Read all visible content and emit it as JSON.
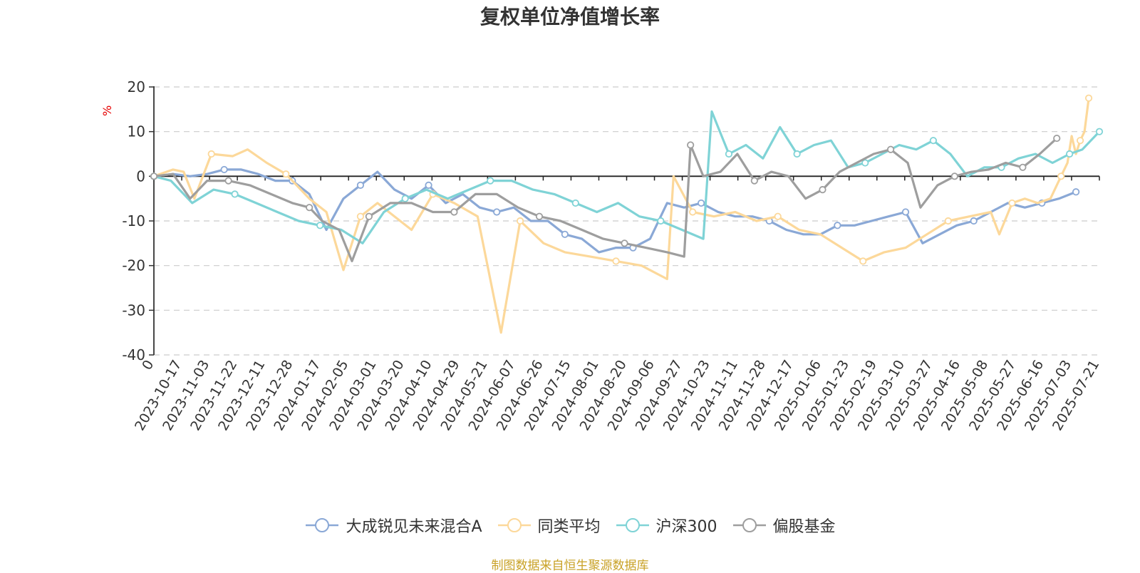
{
  "title": "复权单位净值增长率",
  "source_note": "制图数据来自恒生聚源数据库",
  "chart_data": {
    "type": "line",
    "title": "复权单位净值增长率",
    "ylabel": "%",
    "xlabel": "",
    "ylim": [
      -40,
      20
    ],
    "yticks": [
      20,
      10,
      0,
      -10,
      -20,
      -30,
      -40
    ],
    "grid": true,
    "legend_position": "bottom",
    "x_tick_labels": [
      "0",
      "2023-10-17",
      "2023-11-03",
      "2023-11-22",
      "2023-12-11",
      "2023-12-28",
      "2024-01-17",
      "2024-02-05",
      "2024-03-01",
      "2024-03-20",
      "2024-04-10",
      "2024-04-29",
      "2024-05-21",
      "2024-06-07",
      "2024-06-26",
      "2024-07-15",
      "2024-08-01",
      "2024-08-20",
      "2024-09-06",
      "2024-09-27",
      "2024-10-23",
      "2024-11-11",
      "2024-11-28",
      "2024-12-17",
      "2025-01-06",
      "2025-01-23",
      "2025-02-19",
      "2025-03-10",
      "2025-03-27",
      "2025-04-16",
      "2025-05-08",
      "2025-05-27",
      "2025-06-16",
      "2025-07-03",
      "2025-07-21"
    ],
    "series": [
      {
        "name": "大成锐见未来混合A",
        "color": "#8aa8d6",
        "values": [
          0,
          0.5,
          0,
          0.5,
          1.5,
          1.5,
          0.5,
          -1,
          -1,
          -4,
          -12,
          -5,
          -2,
          1,
          -3,
          -5,
          -2,
          -6,
          -4,
          -7,
          -8,
          -7,
          -10,
          -10,
          -13,
          -14,
          -17,
          -16,
          -16,
          -14,
          -6,
          -7,
          -6,
          -8,
          -9,
          -9,
          -10,
          -12,
          -13,
          -13,
          -11,
          -11,
          -10,
          -9,
          -8,
          -15,
          -13,
          -11,
          -10,
          -8,
          -6,
          -7,
          -6,
          -5,
          -3.5
        ],
        "points_t": [
          0,
          9,
          17,
          25,
          33,
          41,
          49,
          57,
          65,
          73,
          81,
          89,
          97,
          105,
          113,
          121,
          129,
          137,
          145,
          153,
          161,
          169,
          177,
          185,
          193,
          201,
          209,
          217,
          225,
          233,
          241,
          249,
          257,
          265,
          273,
          281,
          289,
          297,
          305,
          313,
          321,
          329,
          337,
          345,
          353,
          361,
          369,
          377,
          385,
          393,
          401,
          409,
          417,
          425,
          433
        ]
      },
      {
        "name": "同类平均",
        "color": "#fcd89a",
        "values": [
          0,
          1.5,
          1,
          -5,
          5,
          4.5,
          6,
          3,
          0.5,
          -5,
          -8,
          -21,
          -9,
          -6,
          -9,
          -12,
          -4,
          -6,
          -9,
          -35,
          -10,
          -15,
          -17,
          -18,
          -19,
          -20,
          -23,
          0,
          -8,
          -9,
          -8,
          -10,
          -9,
          -12,
          -13,
          -16,
          -19,
          -17,
          -16,
          -13,
          -10,
          -9,
          -8,
          -13,
          -6,
          -5,
          -6,
          -5,
          0,
          3,
          9,
          5,
          8,
          10,
          17.5
        ],
        "points_t": [
          0,
          9,
          14,
          19,
          27,
          37,
          44,
          53,
          62,
          73,
          81,
          89,
          97,
          105,
          113,
          121,
          131,
          141,
          152,
          163,
          172,
          183,
          193,
          205,
          217,
          229,
          241,
          244,
          253,
          263,
          273,
          283,
          293,
          303,
          313,
          323,
          333,
          343,
          353,
          363,
          373,
          383,
          393,
          397,
          403,
          409,
          415,
          421,
          426,
          429,
          431,
          433,
          435,
          437,
          439
        ]
      },
      {
        "name": "沪深300",
        "color": "#7fd3d6",
        "values": [
          0,
          -1,
          -6,
          -3,
          -4,
          -6,
          -8,
          -10,
          -11,
          -12,
          -15,
          -8,
          -5,
          -3,
          -5,
          -3,
          -1,
          -1,
          -3,
          -4,
          -6,
          -8,
          -6,
          -9,
          -10,
          -12,
          -14,
          14.5,
          5,
          7,
          4,
          11,
          5,
          7,
          8,
          2,
          3,
          5,
          7,
          6,
          8,
          5,
          0,
          2,
          2,
          4,
          5,
          3,
          5,
          6,
          8,
          10
        ],
        "points_t": [
          0,
          8,
          18,
          28,
          38,
          48,
          58,
          68,
          78,
          88,
          98,
          108,
          118,
          128,
          138,
          148,
          158,
          168,
          178,
          188,
          198,
          208,
          218,
          228,
          238,
          248,
          258,
          262,
          270,
          278,
          286,
          294,
          302,
          310,
          318,
          326,
          334,
          342,
          350,
          358,
          366,
          374,
          382,
          390,
          398,
          406,
          414,
          422,
          430,
          436,
          440,
          444
        ]
      },
      {
        "name": "偏股基金",
        "color": "#9e9e9e",
        "values": [
          0,
          0.5,
          -5,
          -1,
          -1,
          -2,
          -4,
          -6,
          -7,
          -10,
          -12,
          -19,
          -9,
          -6,
          -6,
          -8,
          -8,
          -4,
          -4,
          -7,
          -9,
          -10,
          -12,
          -14,
          -15,
          -16,
          -17,
          -18,
          7,
          0,
          1,
          5,
          -1,
          1,
          0,
          -5,
          -3,
          1,
          3,
          5,
          6,
          3,
          -7,
          -2,
          0,
          1,
          1.5,
          3,
          2,
          5,
          8.5
        ],
        "points_t": [
          0,
          9,
          17,
          25,
          35,
          45,
          55,
          65,
          73,
          79,
          87,
          93,
          101,
          111,
          121,
          131,
          141,
          151,
          161,
          171,
          181,
          191,
          201,
          211,
          221,
          231,
          241,
          249,
          252,
          258,
          266,
          274,
          282,
          290,
          298,
          306,
          314,
          322,
          330,
          338,
          346,
          354,
          360,
          368,
          376,
          384,
          392,
          400,
          408,
          416,
          424
        ]
      }
    ]
  }
}
